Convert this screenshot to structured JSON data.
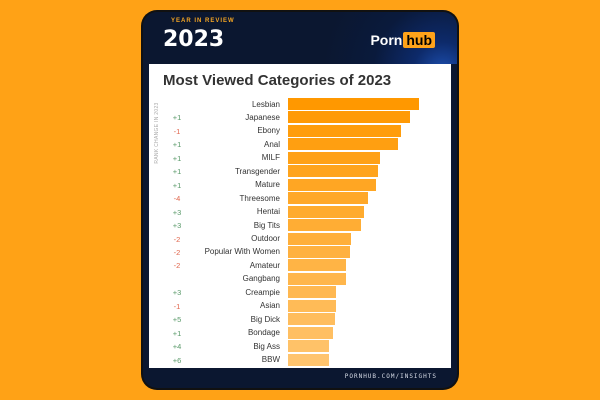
{
  "header": {
    "badge": "YEAR IN REVIEW",
    "year": "2023",
    "logo_text": "Porn",
    "logo_highlight": "hub"
  },
  "footer": {
    "url": "PORNHUB.COM/INSIGHTS"
  },
  "colors": {
    "background": "#ffa216",
    "bar_top": "#ff9800",
    "bar_bottom": "#ffc46e",
    "positive": "#5a9a6a",
    "negative": "#e0664c"
  },
  "chart_data": {
    "type": "bar",
    "orientation": "horizontal",
    "title": "Most Viewed Categories of 2023",
    "change_label": "RANK CHANGE IN 2023",
    "categories": [
      "Lesbian",
      "Japanese",
      "Ebony",
      "Anal",
      "MILF",
      "Transgender",
      "Mature",
      "Threesome",
      "Hentai",
      "Big Tits",
      "Outdoor",
      "Popular With Women",
      "Amateur",
      "Gangbang",
      "Creampie",
      "Asian",
      "Big Dick",
      "Bondage",
      "Big Ass",
      "BBW"
    ],
    "values": [
      100,
      93,
      86,
      84,
      70,
      69,
      67,
      61,
      58,
      56,
      48,
      47,
      44,
      44,
      37,
      37,
      36,
      34,
      31,
      31
    ],
    "rank_change": [
      "",
      "+1",
      "-1",
      "+1",
      "+1",
      "+1",
      "+1",
      "-4",
      "+3",
      "+3",
      "-2",
      "-2",
      "-2",
      "",
      "+3",
      "-1",
      "+5",
      "+1",
      "+4",
      "+6"
    ]
  }
}
